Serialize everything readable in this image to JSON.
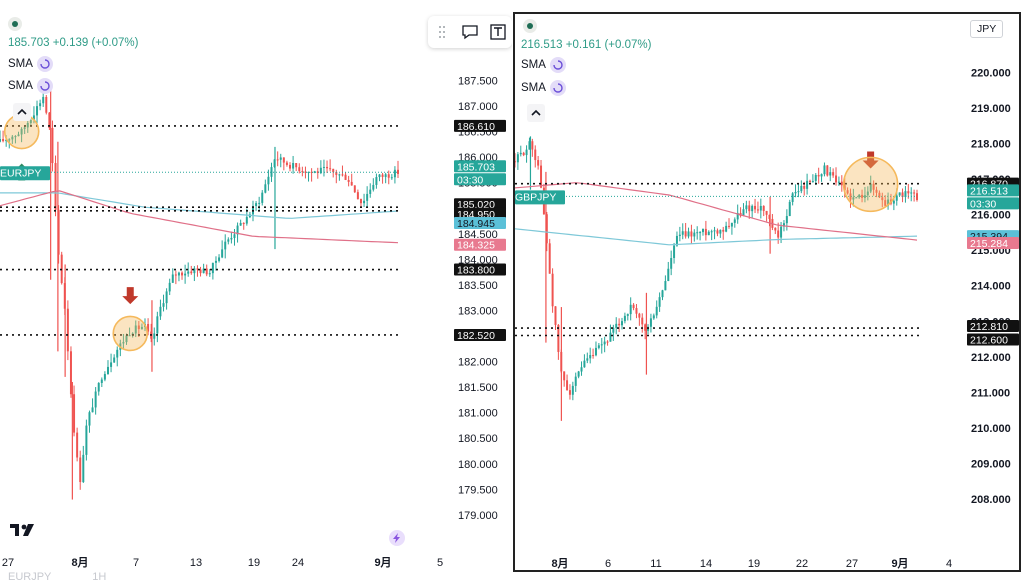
{
  "colors": {
    "up": "#26a69a",
    "down": "#ef5350",
    "sma_fast": "#7ec8d8",
    "sma_slow": "#e07088",
    "highlight": "#f5b95c",
    "arrow_up": "#2e8a63",
    "arrow_down": "#c0392b"
  },
  "left_chart": {
    "symbol": "EURJPY",
    "header_values": "185.703 +0.139 (+0.07%)",
    "indicators": [
      "SMA",
      "SMA"
    ],
    "toolbar_icons": [
      "drag-handle-icon",
      "comment-icon",
      "text-tool-icon"
    ],
    "watermark": "EURJPY",
    "watermark_tf": "1H",
    "price_scale": [
      "187.500",
      "187.000",
      "186.500",
      "186.000",
      "185.500",
      "185.000",
      "184.500",
      "184.000",
      "183.500",
      "183.000",
      "182.500",
      "182.000",
      "181.500",
      "181.000",
      "180.500",
      "180.000",
      "179.500",
      "179.000"
    ],
    "time_labels": [
      "27",
      "8月",
      "7",
      "13",
      "19",
      "24",
      "9月",
      "5"
    ],
    "price_labels": [
      {
        "text": "186.610",
        "kind": "line"
      },
      {
        "text": "EURJPY",
        "kind": "symbol"
      },
      {
        "text": "185.703",
        "kind": "last"
      },
      {
        "text": "03:30",
        "kind": "countdown"
      },
      {
        "text": "185.020",
        "kind": "line"
      },
      {
        "text": "184.950",
        "kind": "line"
      },
      {
        "text": "184.945",
        "kind": "sma_fast"
      },
      {
        "text": "184.325",
        "kind": "sma_slow"
      },
      {
        "text": "183.800",
        "kind": "line"
      },
      {
        "text": "182.520",
        "kind": "line"
      }
    ],
    "chart_data": {
      "type": "candlestick",
      "x_ticks": [
        "27",
        "8月",
        "7",
        "13",
        "19",
        "24",
        "9月",
        "5"
      ],
      "ylim": [
        178.9,
        187.9
      ],
      "horizontal_lines": [
        186.61,
        185.02,
        184.95,
        183.8,
        182.52
      ],
      "last_price": 185.703,
      "sma_fast_last": 184.945,
      "sma_slow_last": 184.325,
      "path_keypoints": [
        [
          0,
          186.3
        ],
        [
          3,
          186.5
        ],
        [
          5,
          186.95
        ],
        [
          6,
          187.2
        ],
        [
          7,
          186.4
        ],
        [
          8,
          184.2
        ],
        [
          9,
          183.0
        ],
        [
          10,
          181.0
        ],
        [
          11,
          179.6
        ],
        [
          12,
          180.8
        ],
        [
          14,
          181.7
        ],
        [
          16,
          182.2
        ],
        [
          18,
          182.6
        ],
        [
          20,
          182.7
        ],
        [
          21,
          182.35
        ],
        [
          22,
          183.0
        ],
        [
          24,
          183.7
        ],
        [
          27,
          183.8
        ],
        [
          29,
          183.75
        ],
        [
          31,
          184.3
        ],
        [
          34,
          184.8
        ],
        [
          36,
          185.2
        ],
        [
          38,
          186.0
        ],
        [
          40,
          185.85
        ],
        [
          43,
          185.7
        ],
        [
          45,
          185.75
        ],
        [
          48,
          185.6
        ],
        [
          50,
          185.1
        ],
        [
          52,
          185.6
        ],
        [
          55,
          185.703
        ]
      ],
      "sma_fast_points": [
        [
          0,
          185.3
        ],
        [
          8,
          185.3
        ],
        [
          20,
          185.02
        ],
        [
          40,
          184.8
        ],
        [
          55,
          184.945
        ]
      ],
      "sma_slow_points": [
        [
          0,
          185.05
        ],
        [
          8,
          185.35
        ],
        [
          18,
          184.9
        ],
        [
          35,
          184.45
        ],
        [
          55,
          184.325
        ]
      ],
      "annotations": [
        {
          "type": "arrow-up",
          "x": 3,
          "y": 185.7
        },
        {
          "type": "circle",
          "x": 3,
          "y": 186.5
        },
        {
          "type": "arrow-down",
          "x": 18,
          "y": 183.3
        },
        {
          "type": "circle",
          "x": 18,
          "y": 182.55
        }
      ]
    }
  },
  "right_chart": {
    "symbol": "GBPJPY",
    "header_values": "216.513 +0.161 (+0.07%)",
    "indicators": [
      "SMA",
      "SMA"
    ],
    "currency": "JPY",
    "price_scale": [
      "220.000",
      "219.000",
      "218.000",
      "217.000",
      "216.000",
      "215.000",
      "214.000",
      "213.000",
      "212.000",
      "211.000",
      "210.000",
      "209.000",
      "208.000"
    ],
    "time_labels": [
      "8月",
      "6",
      "11",
      "14",
      "19",
      "22",
      "27",
      "9月",
      "4"
    ],
    "price_labels": [
      {
        "text": "216.870",
        "kind": "line"
      },
      {
        "text": "GBPJPY",
        "kind": "symbol"
      },
      {
        "text": "216.513",
        "kind": "last"
      },
      {
        "text": "03:30",
        "kind": "countdown"
      },
      {
        "text": "215.394",
        "kind": "sma_fast"
      },
      {
        "text": "215.284",
        "kind": "sma_slow"
      },
      {
        "text": "212.810",
        "kind": "line"
      },
      {
        "text": "212.600",
        "kind": "line"
      }
    ],
    "chart_data": {
      "type": "candlestick",
      "x_ticks": [
        "8月",
        "6",
        "11",
        "14",
        "19",
        "22",
        "27",
        "9月",
        "4"
      ],
      "ylim": [
        207.3,
        220.6
      ],
      "horizontal_lines": [
        216.87,
        212.81,
        212.6
      ],
      "last_price": 216.513,
      "sma_fast_last": 215.394,
      "sma_slow_last": 215.284,
      "path_keypoints": [
        [
          0,
          217.5
        ],
        [
          2,
          218.0
        ],
        [
          3,
          217.4
        ],
        [
          4,
          215.5
        ],
        [
          5,
          213.2
        ],
        [
          6,
          211.5
        ],
        [
          7,
          211.0
        ],
        [
          9,
          211.8
        ],
        [
          12,
          212.5
        ],
        [
          15,
          213.4
        ],
        [
          17,
          212.7
        ],
        [
          19,
          213.8
        ],
        [
          21,
          215.4
        ],
        [
          24,
          215.5
        ],
        [
          27,
          215.6
        ],
        [
          30,
          216.2
        ],
        [
          32,
          216.2
        ],
        [
          34,
          215.3
        ],
        [
          36,
          216.6
        ],
        [
          38,
          216.9
        ],
        [
          40,
          217.3
        ],
        [
          42,
          216.8
        ],
        [
          44,
          216.4
        ],
        [
          46,
          216.8
        ],
        [
          48,
          216.3
        ],
        [
          50,
          216.6
        ],
        [
          52,
          216.513
        ]
      ],
      "sma_fast_points": [
        [
          0,
          215.6
        ],
        [
          20,
          215.15
        ],
        [
          34,
          215.3
        ],
        [
          52,
          215.394
        ]
      ],
      "sma_slow_points": [
        [
          0,
          216.75
        ],
        [
          8,
          216.9
        ],
        [
          20,
          216.55
        ],
        [
          34,
          215.7
        ],
        [
          52,
          215.284
        ]
      ],
      "annotations": [
        {
          "type": "arrow-down",
          "x": 46,
          "y": 217.55
        },
        {
          "type": "circle",
          "x": 46,
          "y": 216.85
        }
      ]
    }
  }
}
